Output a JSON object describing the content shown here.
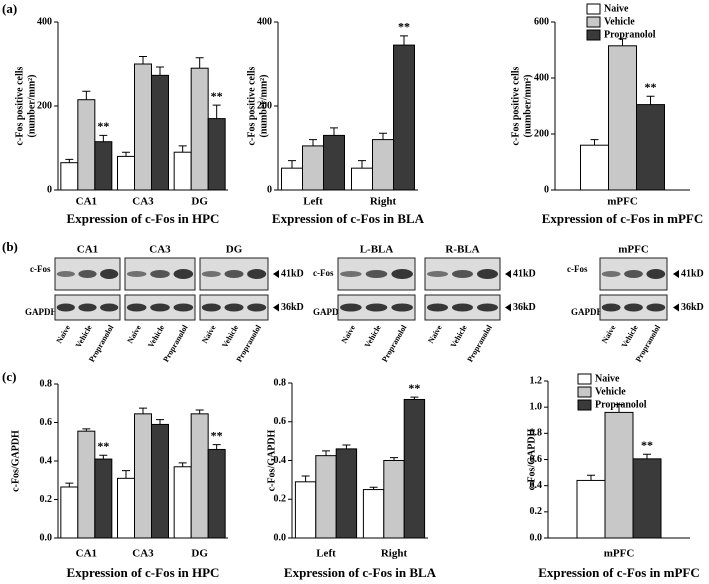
{
  "panel_labels": [
    "(a)",
    "(b)",
    "(c)"
  ],
  "chart_data": [
    {
      "type": "bar",
      "x_label": "Expression of  c-Fos in HPC",
      "y_label": [
        "c-Fos positive cells",
        "(number/mm²)"
      ],
      "categories": [
        "CA1",
        "CA3",
        "DG"
      ],
      "series": [
        {
          "name": "Naive",
          "color": "#ffffff",
          "values": [
            65,
            80,
            90
          ],
          "errors": [
            8,
            10,
            15
          ]
        },
        {
          "name": "Vehicle",
          "color": "#c8c8c8",
          "values": [
            215,
            300,
            290
          ],
          "errors": [
            20,
            18,
            25
          ]
        },
        {
          "name": "Propranolol",
          "color": "#3a3a3a",
          "values": [
            115,
            273,
            170
          ],
          "errors": [
            15,
            20,
            32
          ],
          "significance": [
            "**",
            null,
            "**"
          ]
        }
      ],
      "ylim": [
        0,
        400
      ],
      "yticks": [
        0,
        200,
        400
      ]
    },
    {
      "type": "bar",
      "x_label": "Expression of  c-Fos in BLA",
      "y_label": [
        "c-Fos positive cells",
        "(number/mm²)"
      ],
      "categories": [
        "Left",
        "Right"
      ],
      "series": [
        {
          "name": "Naive",
          "color": "#ffffff",
          "values": [
            52,
            52
          ],
          "errors": [
            18,
            18
          ]
        },
        {
          "name": "Vehicle",
          "color": "#c8c8c8",
          "values": [
            105,
            120
          ],
          "errors": [
            15,
            15
          ]
        },
        {
          "name": "Propranolol",
          "color": "#3a3a3a",
          "values": [
            130,
            345
          ],
          "errors": [
            18,
            22
          ],
          "significance": [
            null,
            "**"
          ]
        }
      ],
      "ylim": [
        0,
        400
      ],
      "yticks": [
        0,
        200,
        400
      ]
    },
    {
      "type": "bar",
      "x_label": "Expression of  c-Fos in mPFC",
      "y_label": [
        "c-Fos positive cells",
        "(number/mm²)"
      ],
      "categories": [
        "mPFC"
      ],
      "series": [
        {
          "name": "Naive",
          "color": "#ffffff",
          "values": [
            160
          ],
          "errors": [
            20
          ]
        },
        {
          "name": "Vehicle",
          "color": "#c8c8c8",
          "values": [
            515
          ],
          "errors": [
            25
          ]
        },
        {
          "name": "Propranolol",
          "color": "#3a3a3a",
          "values": [
            305
          ],
          "errors": [
            30
          ],
          "significance": [
            "**"
          ]
        }
      ],
      "ylim": [
        0,
        600
      ],
      "yticks": [
        0,
        200,
        400,
        600
      ],
      "legend": "upper right"
    },
    {
      "type": "bar",
      "x_label": "Expression of c-Fos in HPC",
      "y_label": [
        "c-Fos/GAPDH"
      ],
      "categories": [
        "CA1",
        "CA3",
        "DG"
      ],
      "series": [
        {
          "name": "Naive",
          "color": "#ffffff",
          "values": [
            0.265,
            0.31,
            0.37
          ],
          "errors": [
            0.02,
            0.04,
            0.02
          ]
        },
        {
          "name": "Vehicle",
          "color": "#c8c8c8",
          "values": [
            0.555,
            0.645,
            0.645
          ],
          "errors": [
            0.012,
            0.03,
            0.02
          ]
        },
        {
          "name": "Propranolol",
          "color": "#3a3a3a",
          "values": [
            0.41,
            0.59,
            0.46
          ],
          "errors": [
            0.02,
            0.025,
            0.025
          ],
          "significance": [
            "**",
            null,
            "**"
          ]
        }
      ],
      "ylim": [
        0,
        0.8
      ],
      "yticks": [
        {
          "value": 0,
          "label": "0.0"
        },
        0.2,
        0.4,
        0.6,
        0.8
      ]
    },
    {
      "type": "bar",
      "x_label": "Expression of c-Fos in BLA",
      "y_label": [
        "c-Fos/GAPDH"
      ],
      "categories": [
        "Left",
        "Right"
      ],
      "series": [
        {
          "name": "Naive",
          "color": "#ffffff",
          "values": [
            0.29,
            0.25
          ],
          "errors": [
            0.03,
            0.012
          ]
        },
        {
          "name": "Vehicle",
          "color": "#c8c8c8",
          "values": [
            0.425,
            0.4
          ],
          "errors": [
            0.025,
            0.015
          ]
        },
        {
          "name": "Propranolol",
          "color": "#3a3a3a",
          "values": [
            0.46,
            0.715
          ],
          "errors": [
            0.02,
            0.012
          ],
          "significance": [
            null,
            "**"
          ]
        }
      ],
      "ylim": [
        0,
        0.8
      ],
      "yticks": [
        {
          "value": 0,
          "label": "0.0"
        },
        0.2,
        0.4,
        0.6,
        0.8
      ]
    },
    {
      "type": "bar",
      "x_label": "Expression of c-Fos in mPFC",
      "y_label": [
        "c-Fos/GAPDH"
      ],
      "categories": [
        "mPFC"
      ],
      "series": [
        {
          "name": "Naive",
          "color": "#ffffff",
          "values": [
            0.44
          ],
          "errors": [
            0.04
          ]
        },
        {
          "name": "Vehicle",
          "color": "#c8c8c8",
          "values": [
            0.96
          ],
          "errors": [
            0.06
          ]
        },
        {
          "name": "Propranolol",
          "color": "#3a3a3a",
          "values": [
            0.605
          ],
          "errors": [
            0.035
          ],
          "significance": [
            "**"
          ]
        }
      ],
      "ylim": [
        0,
        1.2
      ],
      "yticks": [
        {
          "value": 0,
          "label": "0.0"
        },
        0.2,
        0.4,
        0.6,
        0.8,
        {
          "value": 1,
          "label": "1.0"
        },
        1.2
      ],
      "legend": "upper right"
    }
  ],
  "blots": {
    "rows": [
      "c-Fos",
      "GAPDH"
    ],
    "markers": [
      "41kD",
      "36kD"
    ],
    "lanes": [
      "Naive",
      "Vehicle",
      "Propranolol"
    ],
    "groups": [
      {
        "titles": [
          "CA1",
          "CA3",
          "DG"
        ]
      },
      {
        "titles": [
          "L-BLA",
          "R-BLA"
        ]
      },
      {
        "titles": [
          "mPFC"
        ]
      }
    ]
  }
}
